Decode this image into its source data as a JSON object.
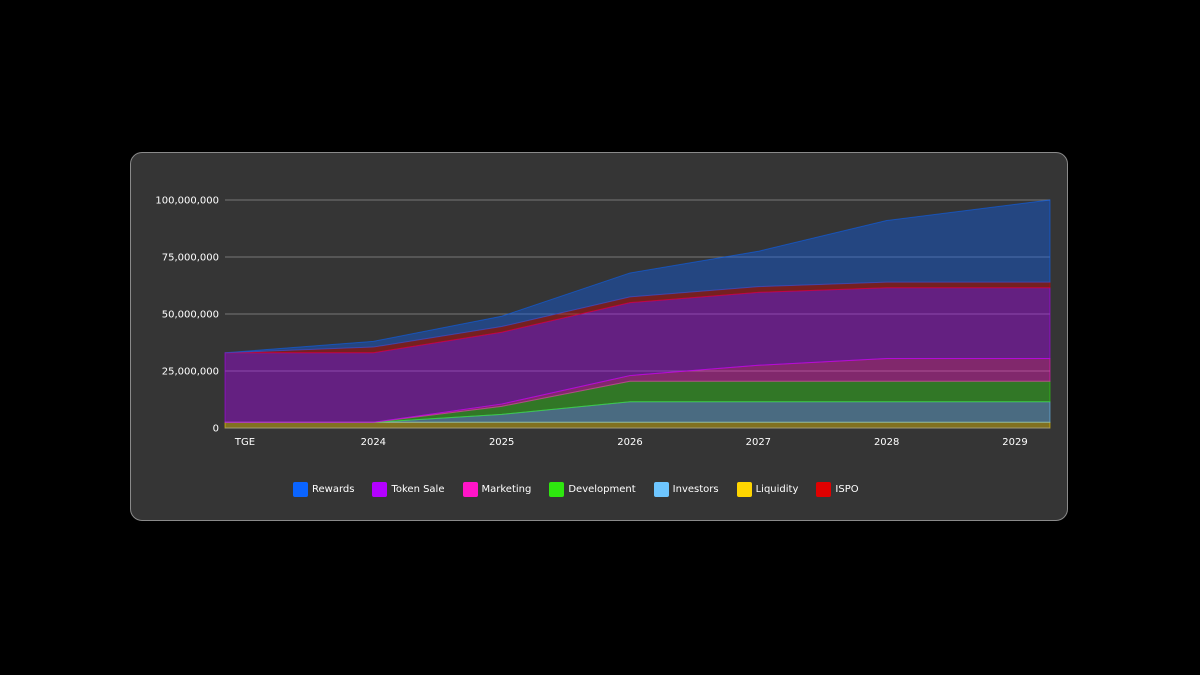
{
  "chart_data": {
    "type": "area",
    "stacked": true,
    "title": "",
    "xlabel": "",
    "ylabel": "",
    "x": [
      "TGE",
      "2024",
      "2025",
      "2026",
      "2027",
      "2028",
      "2029"
    ],
    "ylim": [
      0,
      100000000
    ],
    "y_ticks": [
      "0",
      "25,000,000",
      "50,000,000",
      "75,000,000",
      "100,000,000"
    ],
    "grid": true,
    "legend_position": "bottom",
    "series": [
      {
        "name": "Liquidity",
        "color": "#ffd500",
        "values": [
          2500000,
          2500000,
          2500000,
          2500000,
          2500000,
          2500000,
          2500000
        ]
      },
      {
        "name": "Investors",
        "color": "#6ec6ff",
        "values": [
          0,
          0,
          3500000,
          9000000,
          9000000,
          9000000,
          9000000
        ]
      },
      {
        "name": "Development",
        "color": "#2ee60f",
        "values": [
          0,
          0,
          3500000,
          9000000,
          9000000,
          9000000,
          9000000
        ]
      },
      {
        "name": "Marketing",
        "color": "#ff14c8",
        "values": [
          0,
          0,
          1000000,
          2500000,
          7000000,
          10000000,
          10000000
        ]
      },
      {
        "name": "Token Sale",
        "color": "#b300ff",
        "values": [
          30500000,
          30500000,
          31500000,
          32000000,
          32000000,
          31000000,
          31000000
        ]
      },
      {
        "name": "ISPO",
        "color": "#e00000",
        "values": [
          0,
          2500000,
          2500000,
          2500000,
          2500000,
          2500000,
          2500000
        ]
      },
      {
        "name": "Rewards",
        "color": "#0a64ff",
        "values": [
          0,
          2500000,
          4500000,
          10500000,
          15500000,
          27000000,
          36000000
        ]
      }
    ]
  },
  "legend": [
    {
      "name": "Rewards",
      "color": "#0a64ff"
    },
    {
      "name": "Token Sale",
      "color": "#b300ff"
    },
    {
      "name": "Marketing",
      "color": "#ff14c8"
    },
    {
      "name": "Development",
      "color": "#2ee60f"
    },
    {
      "name": "Investors",
      "color": "#6ec6ff"
    },
    {
      "name": "Liquidity",
      "color": "#ffd500"
    },
    {
      "name": "ISPO",
      "color": "#e00000"
    }
  ]
}
